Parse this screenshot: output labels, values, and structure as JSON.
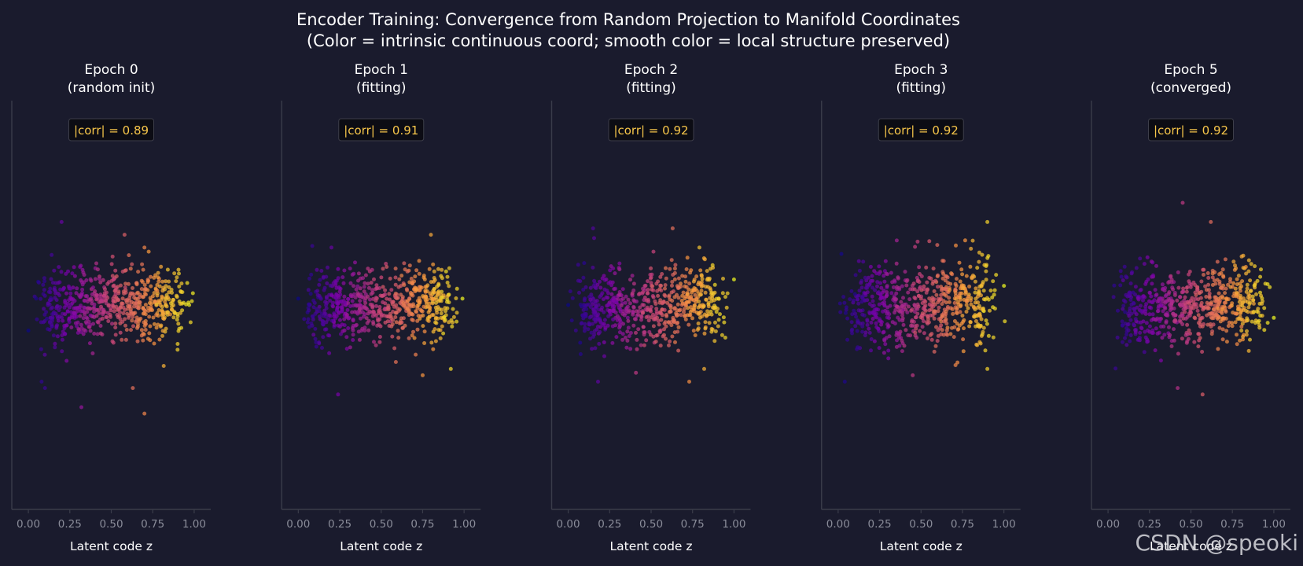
{
  "figure": {
    "title_line1": "Encoder Training: Convergence from Random Projection to Manifold Coordinates",
    "title_line2": "(Color = intrinsic continuous coord; smooth color = local structure preserved)",
    "watermark": "CSDN @speoki",
    "background": "#1a1b2d",
    "spine_color": "#3a3c4a",
    "colormap": "plasma",
    "corr_text_color": "#f7c64a"
  },
  "chart_data": [
    {
      "type": "scatter",
      "title_line1": "Epoch 0",
      "title_line2": "(random init)",
      "annotation": "|corr| = 0.89",
      "xlabel": "Latent code z",
      "ylabel": "",
      "xlim": [
        -0.1,
        1.1
      ],
      "ylim": [
        -3.2,
        3.2
      ],
      "xticks": [
        "0.00",
        "0.25",
        "0.50",
        "0.75",
        "1.00"
      ],
      "legend": "none",
      "grid": false,
      "spread_x": 0.025,
      "spread_y": 0.55,
      "points": [
        [
          0.2,
          1.3
        ],
        [
          0.58,
          1.1
        ],
        [
          0.7,
          0.9
        ],
        [
          0.8,
          0.6
        ],
        [
          0.08,
          -1.2
        ],
        [
          0.1,
          -1.3
        ],
        [
          0.32,
          -1.6
        ],
        [
          0.63,
          -1.3
        ],
        [
          0.7,
          -1.7
        ],
        [
          0.97,
          0.0
        ],
        [
          0.0,
          -0.4
        ],
        [
          0.9,
          -0.7
        ]
      ]
    },
    {
      "type": "scatter",
      "title_line1": "Epoch 1",
      "title_line2": "(fitting)",
      "annotation": "|corr| = 0.91",
      "xlabel": "Latent code z",
      "ylabel": "",
      "xlim": [
        -0.1,
        1.1
      ],
      "ylim": [
        -3.2,
        3.2
      ],
      "xticks": [
        "0.00",
        "0.25",
        "0.50",
        "0.75",
        "1.00"
      ],
      "legend": "none",
      "grid": false,
      "spread_x": 0.03,
      "spread_y": 0.5,
      "points": [
        [
          0.8,
          1.1
        ],
        [
          0.75,
          -1.1
        ],
        [
          0.92,
          -1.0
        ],
        [
          0.24,
          -1.4
        ],
        [
          0.99,
          0.1
        ],
        [
          0.0,
          0.1
        ],
        [
          0.2,
          0.9
        ]
      ]
    },
    {
      "type": "scatter",
      "title_line1": "Epoch 2",
      "title_line2": "(fitting)",
      "annotation": "|corr| = 0.92",
      "xlabel": "Latent code z",
      "ylabel": "",
      "xlim": [
        -0.1,
        1.1
      ],
      "ylim": [
        -3.2,
        3.2
      ],
      "xticks": [
        "0.00",
        "0.25",
        "0.50",
        "0.75",
        "1.00"
      ],
      "legend": "none",
      "grid": false,
      "spread_x": 0.03,
      "spread_y": 0.55,
      "points": [
        [
          0.63,
          1.2
        ],
        [
          1.0,
          0.4
        ],
        [
          0.73,
          -1.2
        ],
        [
          0.18,
          -1.2
        ],
        [
          0.15,
          1.2
        ],
        [
          0.82,
          -1.0
        ],
        [
          0.0,
          0.0
        ]
      ]
    },
    {
      "type": "scatter",
      "title_line1": "Epoch 3",
      "title_line2": "(fitting)",
      "annotation": "|corr| = 0.92",
      "xlabel": "Latent code z",
      "ylabel": "",
      "xlim": [
        -0.1,
        1.1
      ],
      "ylim": [
        -3.2,
        3.2
      ],
      "xticks": [
        "0.00",
        "0.25",
        "0.50",
        "0.75",
        "1.00"
      ],
      "legend": "none",
      "grid": false,
      "spread_x": 0.03,
      "spread_y": 0.6,
      "points": [
        [
          0.9,
          1.3
        ],
        [
          1.0,
          0.3
        ],
        [
          0.04,
          -1.2
        ],
        [
          0.9,
          -1.0
        ],
        [
          0.55,
          1.0
        ],
        [
          0.45,
          -1.1
        ],
        [
          0.02,
          0.8
        ],
        [
          0.72,
          -0.9
        ]
      ]
    },
    {
      "type": "scatter",
      "title_line1": "Epoch 5",
      "title_line2": "(converged)",
      "annotation": "|corr| = 0.92",
      "xlabel": "Latent code z",
      "ylabel": "",
      "xlim": [
        -0.1,
        1.1
      ],
      "ylim": [
        -3.2,
        3.2
      ],
      "xticks": [
        "0.00",
        "0.25",
        "0.50",
        "0.75",
        "1.00"
      ],
      "legend": "none",
      "grid": false,
      "spread_x": 0.03,
      "spread_y": 0.55,
      "points": [
        [
          0.45,
          1.6
        ],
        [
          0.62,
          1.3
        ],
        [
          1.0,
          -0.2
        ],
        [
          0.57,
          -1.4
        ],
        [
          0.42,
          -1.3
        ],
        [
          0.1,
          0.6
        ],
        [
          0.85,
          0.7
        ]
      ]
    }
  ]
}
